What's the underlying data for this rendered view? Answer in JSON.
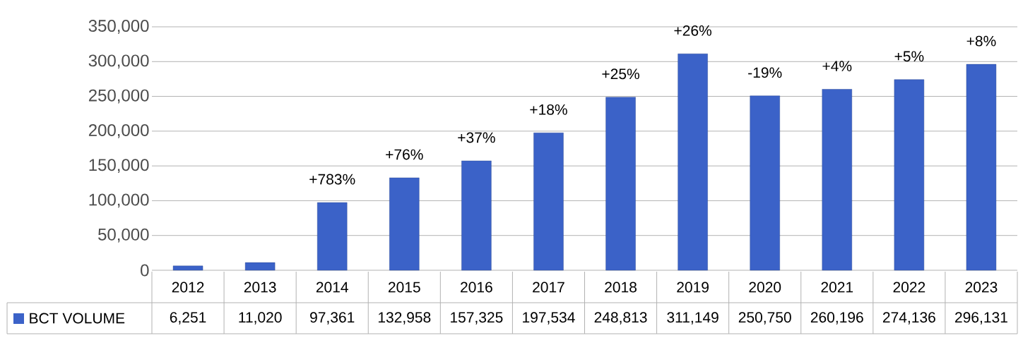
{
  "chart_data": {
    "type": "bar",
    "categories": [
      "2012",
      "2013",
      "2014",
      "2015",
      "2016",
      "2017",
      "2018",
      "2019",
      "2020",
      "2021",
      "2022",
      "2023"
    ],
    "series": [
      {
        "name": "BCT VOLUME",
        "color": "#3b62c8",
        "values": [
          6251,
          11020,
          97361,
          132958,
          157325,
          197534,
          248813,
          311149,
          250750,
          260196,
          274136,
          296131
        ],
        "value_labels": [
          "6,251",
          "11,020",
          "97,361",
          "132,958",
          "157,325",
          "197,534",
          "248,813",
          "311,149",
          "250,750",
          "260,196",
          "274,136",
          "296,131"
        ]
      }
    ],
    "ylim": [
      0,
      350000
    ],
    "yticks": [
      0,
      {
        "value": 50000,
        "label": "50,000"
      },
      {
        "value": 100000,
        "label": "100,000"
      },
      {
        "value": 150000,
        "label": "150,000"
      },
      {
        "value": 200000,
        "label": "200,000"
      },
      {
        "value": 250000,
        "label": "250,000"
      },
      {
        "value": 300000,
        "label": "300,000"
      },
      {
        "value": 350000,
        "label": "350,000"
      }
    ],
    "grid": "y",
    "annotations": [
      {
        "text": "+783%",
        "x": "2014",
        "y": 97361
      },
      {
        "text": "+76%",
        "x": "2015",
        "y": 132958
      },
      {
        "text": "+37%",
        "x": "2016",
        "y": 157325
      },
      {
        "text": "+18%",
        "x": "2017",
        "y": 197534
      },
      {
        "text": "+25%",
        "x": "2018",
        "y": 248813
      },
      {
        "text": "+26%",
        "x": "2019",
        "y": 311149
      },
      {
        "text": "-19%",
        "x": "2020",
        "y": 250750
      },
      {
        "text": "+4%",
        "x": "2021",
        "y": 260196
      },
      {
        "text": "+5%",
        "x": "2022",
        "y": 274136
      },
      {
        "text": "+8%",
        "x": "2023",
        "y": 296131
      }
    ]
  }
}
